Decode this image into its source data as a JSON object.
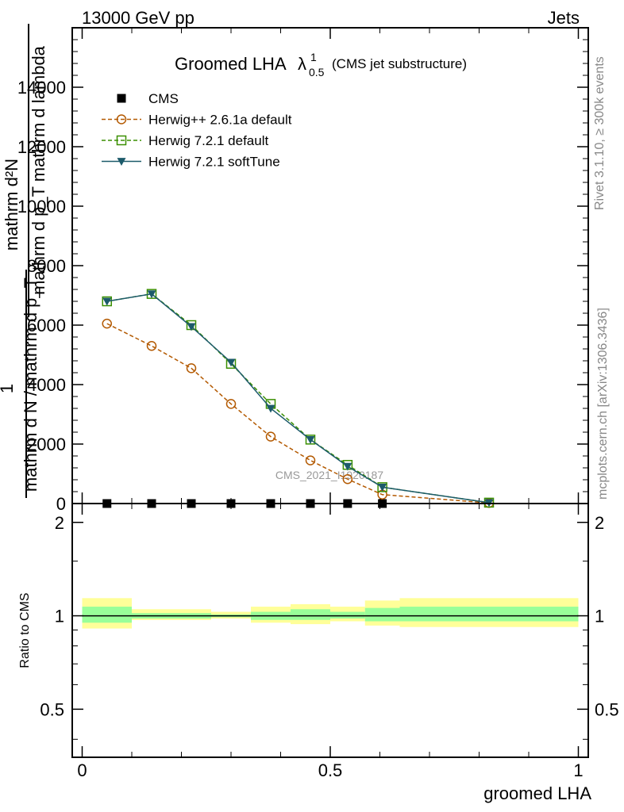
{
  "header": {
    "left": "13000 GeV pp",
    "right": "Jets"
  },
  "side_labels": {
    "rivet": "Rivet 3.1.10, ≥ 300k events",
    "mcplots": "mcplots.cern.ch [arXiv:1306.3436]"
  },
  "watermark": "CMS_2021_I1920187",
  "chart_data": [
    {
      "type": "line",
      "title_main": "Groomed LHA",
      "title_symbol": "λ",
      "title_sup": "1",
      "title_sub": "0.5",
      "title_note": "(CMS jet substructure)",
      "ylabel_num": "mathrm d²N",
      "ylabel_den": "mathrm d p_T mathrm d lambda",
      "ylabel_prefix_num": "1",
      "ylabel_prefix_den": "mathrm d N / mathrm d p_T",
      "ylim": [
        0,
        16000
      ],
      "xlim": [
        -0.02,
        1.02
      ],
      "yticks": [
        0,
        2000,
        4000,
        6000,
        8000,
        10000,
        12000,
        14000
      ],
      "ytick_labels": [
        "0",
        "2000",
        "4000",
        "6000",
        "8000",
        "10000",
        "12000",
        "14000"
      ],
      "legend_position": "top-left",
      "series": [
        {
          "name": "CMS",
          "color": "#000000",
          "marker": "square-filled",
          "x": [
            0.05,
            0.14,
            0.22,
            0.3,
            0.38,
            0.46,
            0.535,
            0.605
          ],
          "y": [
            0,
            0,
            0,
            0,
            0,
            0,
            0,
            0
          ]
        },
        {
          "name": "Herwig++ 2.6.1a default",
          "color": "#b35900",
          "marker": "circle-open",
          "dash": "dashed",
          "x": [
            0.05,
            0.14,
            0.22,
            0.3,
            0.38,
            0.46,
            0.535,
            0.605,
            0.82
          ],
          "y": [
            6050,
            5300,
            4550,
            3350,
            2250,
            1450,
            820,
            300,
            20
          ]
        },
        {
          "name": "Herwig 7.2.1 default",
          "color": "#3a8f00",
          "marker": "square-open",
          "dash": "dashed",
          "x": [
            0.05,
            0.14,
            0.22,
            0.3,
            0.38,
            0.46,
            0.535,
            0.605,
            0.82
          ],
          "y": [
            6800,
            7050,
            6000,
            4700,
            3350,
            2150,
            1300,
            550,
            30
          ]
        },
        {
          "name": "Herwig 7.2.1 softTune",
          "color": "#1c5a6a",
          "marker": "triangle-down-filled",
          "dash": "solid",
          "x": [
            0.05,
            0.14,
            0.22,
            0.3,
            0.38,
            0.46,
            0.535,
            0.605,
            0.82
          ],
          "y": [
            6800,
            7050,
            5950,
            4750,
            3200,
            2150,
            1250,
            550,
            30
          ]
        }
      ]
    },
    {
      "type": "area",
      "ylabel": "Ratio to CMS",
      "xlabel": "groomed LHA",
      "ylim": [
        0.35,
        2.3
      ],
      "yscale": "log",
      "yticks": [
        0.5,
        1,
        2
      ],
      "ytick_labels": [
        "0.5",
        "1",
        "2"
      ],
      "xticks": [
        0,
        0.5,
        1
      ],
      "xtick_labels": [
        "0",
        "0.5",
        "1"
      ],
      "band_colors": {
        "outer": "#ffff99",
        "inner": "#99ff99",
        "line": "#000000"
      },
      "bins": [
        {
          "x0": 0.0,
          "x1": 0.1,
          "outer": [
            0.91,
            1.14
          ],
          "inner": [
            0.95,
            1.07
          ]
        },
        {
          "x0": 0.1,
          "x1": 0.26,
          "outer": [
            0.97,
            1.05
          ],
          "inner": [
            0.98,
            1.02
          ]
        },
        {
          "x0": 0.26,
          "x1": 0.34,
          "outer": [
            0.98,
            1.03
          ],
          "inner": [
            0.99,
            1.01
          ]
        },
        {
          "x0": 0.34,
          "x1": 0.42,
          "outer": [
            0.95,
            1.07
          ],
          "inner": [
            0.97,
            1.03
          ]
        },
        {
          "x0": 0.42,
          "x1": 0.5,
          "outer": [
            0.94,
            1.09
          ],
          "inner": [
            0.97,
            1.05
          ]
        },
        {
          "x0": 0.5,
          "x1": 0.57,
          "outer": [
            0.96,
            1.07
          ],
          "inner": [
            0.98,
            1.03
          ]
        },
        {
          "x0": 0.57,
          "x1": 0.64,
          "outer": [
            0.93,
            1.12
          ],
          "inner": [
            0.96,
            1.06
          ]
        },
        {
          "x0": 0.64,
          "x1": 1.0,
          "outer": [
            0.92,
            1.14
          ],
          "inner": [
            0.96,
            1.07
          ]
        }
      ]
    }
  ]
}
